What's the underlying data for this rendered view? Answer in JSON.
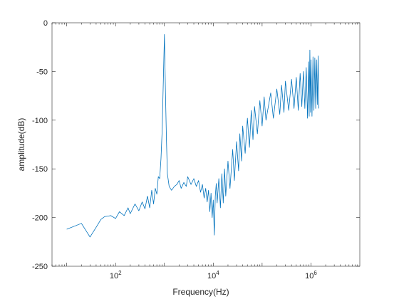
{
  "chart_data": {
    "type": "line",
    "title": "",
    "xlabel": "Frequency(Hz)",
    "ylabel": "amplitude(dB)",
    "xscale": "log",
    "xlim": [
      5,
      10000000
    ],
    "ylim": [
      -250,
      0
    ],
    "grid": false,
    "legend": "none",
    "line_color": "#0072BD",
    "axis_color": "#262626",
    "x_ticks": [
      {
        "value": 100,
        "base": "10",
        "exp": "2"
      },
      {
        "value": 10000,
        "base": "10",
        "exp": "4"
      },
      {
        "value": 1000000,
        "base": "10",
        "exp": "6"
      }
    ],
    "y_ticks": [
      {
        "value": 0,
        "label": "0"
      },
      {
        "value": -50,
        "label": "-50"
      },
      {
        "value": -100,
        "label": "-100"
      },
      {
        "value": -150,
        "label": "-150"
      },
      {
        "value": -200,
        "label": "-200"
      },
      {
        "value": -250,
        "label": "-250"
      }
    ],
    "series": [
      {
        "points": [
          [
            10,
            -212
          ],
          [
            20,
            -206
          ],
          [
            30,
            -220
          ],
          [
            40,
            -210
          ],
          [
            50,
            -202
          ],
          [
            60,
            -199
          ],
          [
            80,
            -198
          ],
          [
            100,
            -201
          ],
          [
            120,
            -194
          ],
          [
            150,
            -198
          ],
          [
            180,
            -190
          ],
          [
            200,
            -196
          ],
          [
            250,
            -186
          ],
          [
            300,
            -193
          ],
          [
            350,
            -184
          ],
          [
            400,
            -191
          ],
          [
            450,
            -178
          ],
          [
            500,
            -190
          ],
          [
            550,
            -172
          ],
          [
            600,
            -186
          ],
          [
            650,
            -170
          ],
          [
            700,
            -176
          ],
          [
            750,
            -158
          ],
          [
            800,
            -160
          ],
          [
            850,
            -140
          ],
          [
            900,
            -110
          ],
          [
            950,
            -60
          ],
          [
            1000,
            -12
          ],
          [
            1050,
            -70
          ],
          [
            1100,
            -120
          ],
          [
            1150,
            -155
          ],
          [
            1250,
            -168
          ],
          [
            1400,
            -172
          ],
          [
            1600,
            -168
          ],
          [
            1800,
            -166
          ],
          [
            2000,
            -162
          ],
          [
            2200,
            -170
          ],
          [
            2500,
            -164
          ],
          [
            2800,
            -168
          ],
          [
            3000,
            -158
          ],
          [
            3500,
            -166
          ],
          [
            4000,
            -160
          ],
          [
            4500,
            -168
          ],
          [
            5000,
            -162
          ],
          [
            5500,
            -174
          ],
          [
            6000,
            -166
          ],
          [
            6500,
            -180
          ],
          [
            7000,
            -170
          ],
          [
            7500,
            -184
          ],
          [
            8000,
            -172
          ],
          [
            8500,
            -194
          ],
          [
            9000,
            -175
          ],
          [
            9500,
            -200
          ],
          [
            10000,
            -182
          ],
          [
            10500,
            -218
          ],
          [
            11000,
            -178
          ],
          [
            11500,
            -165
          ],
          [
            12000,
            -185
          ],
          [
            13000,
            -160
          ],
          [
            14000,
            -190
          ],
          [
            15000,
            -155
          ],
          [
            16000,
            -185
          ],
          [
            17000,
            -150
          ],
          [
            18000,
            -178
          ],
          [
            20000,
            -142
          ],
          [
            22000,
            -170
          ],
          [
            25000,
            -130
          ],
          [
            27000,
            -162
          ],
          [
            30000,
            -122
          ],
          [
            33000,
            -152
          ],
          [
            35000,
            -114
          ],
          [
            38000,
            -142
          ],
          [
            40000,
            -106
          ],
          [
            45000,
            -134
          ],
          [
            50000,
            -98
          ],
          [
            55000,
            -128
          ],
          [
            60000,
            -90
          ],
          [
            65000,
            -120
          ],
          [
            70000,
            -86
          ],
          [
            80000,
            -114
          ],
          [
            90000,
            -80
          ],
          [
            100000,
            -106
          ],
          [
            110000,
            -76
          ],
          [
            120000,
            -100
          ],
          [
            150000,
            -72
          ],
          [
            170000,
            -98
          ],
          [
            200000,
            -68
          ],
          [
            230000,
            -94
          ],
          [
            250000,
            -64
          ],
          [
            280000,
            -92
          ],
          [
            300000,
            -60
          ],
          [
            350000,
            -90
          ],
          [
            400000,
            -58
          ],
          [
            450000,
            -88
          ],
          [
            500000,
            -56
          ],
          [
            550000,
            -90
          ],
          [
            600000,
            -52
          ],
          [
            650000,
            -86
          ],
          [
            700000,
            -50
          ],
          [
            750000,
            -88
          ],
          [
            800000,
            -46
          ],
          [
            850000,
            -98
          ],
          [
            900000,
            -40
          ],
          [
            920000,
            -96
          ],
          [
            950000,
            -28
          ],
          [
            980000,
            -92
          ],
          [
            1000000,
            -38
          ],
          [
            1050000,
            -96
          ],
          [
            1100000,
            -35
          ],
          [
            1150000,
            -90
          ],
          [
            1200000,
            -36
          ],
          [
            1250000,
            -88
          ],
          [
            1300000,
            -38
          ],
          [
            1350000,
            -84
          ],
          [
            1400000,
            -34
          ],
          [
            1450000,
            -88
          ]
        ]
      }
    ]
  }
}
